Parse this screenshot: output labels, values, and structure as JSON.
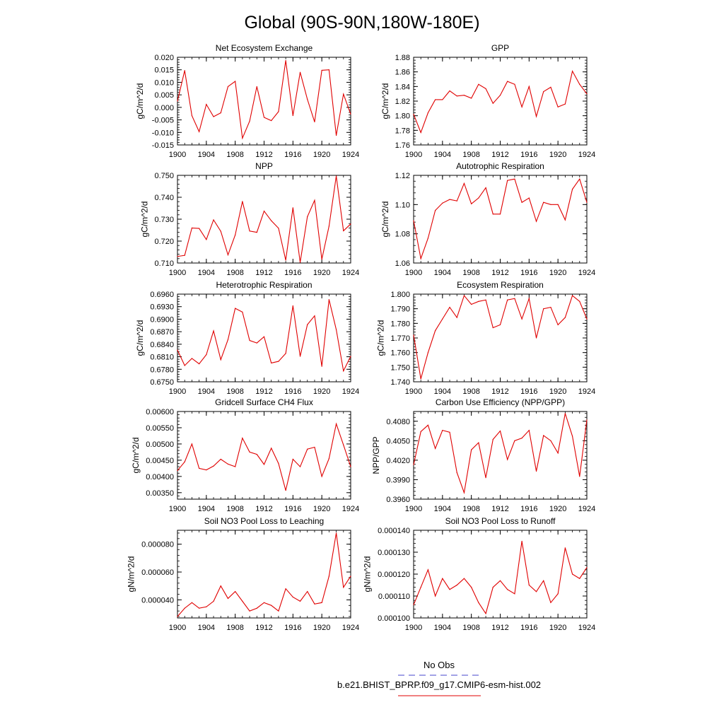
{
  "figure": {
    "title": "Global (90S-90N,180W-180E)",
    "legend": {
      "obs_label": "No Obs",
      "obs_color": "#4444cc",
      "model_label": "b.e21.BHIST_BPRP.f09_g17.CMIP6-esm-hist.002",
      "model_color": "#e00000"
    }
  },
  "chart_data": [
    {
      "type": "line",
      "title": "Net Ecosystem Exchange",
      "ylabel": "gC/m^2/d",
      "xlim": [
        1900,
        1924
      ],
      "xticks": [
        "1900",
        "1904",
        "1908",
        "1912",
        "1916",
        "1920",
        "1924"
      ],
      "ylim": [
        -0.015,
        0.02
      ],
      "yticks": [
        "-0.015",
        "-0.010",
        "-0.005",
        "0.000",
        "0.005",
        "0.010",
        "0.015",
        "0.020"
      ],
      "series": [
        {
          "name": "b.e21.BHIST_BPRP.f09_g17.CMIP6-esm-hist.002",
          "x": [
            1900,
            1901,
            1902,
            1903,
            1904,
            1905,
            1906,
            1907,
            1908,
            1909,
            1910,
            1911,
            1912,
            1913,
            1914,
            1915,
            1916,
            1917,
            1918,
            1919,
            1920,
            1921,
            1922,
            1923,
            1924
          ],
          "values": [
            0.0025,
            0.0147,
            -0.0033,
            -0.0097,
            0.0012,
            -0.0037,
            -0.0022,
            0.0083,
            0.0104,
            -0.0123,
            -0.0055,
            0.0083,
            -0.004,
            -0.0053,
            -0.0017,
            0.0187,
            -0.0033,
            0.014,
            0.0032,
            -0.0058,
            0.0148,
            0.015,
            -0.0112,
            0.0053,
            -0.0027
          ]
        }
      ]
    },
    {
      "type": "line",
      "title": "GPP",
      "ylabel": "gC/m^2/d",
      "xlim": [
        1900,
        1924
      ],
      "xticks": [
        "1900",
        "1904",
        "1908",
        "1912",
        "1916",
        "1920",
        "1924"
      ],
      "ylim": [
        1.76,
        1.88
      ],
      "yticks": [
        "1.76",
        "1.78",
        "1.80",
        "1.82",
        "1.84",
        "1.86",
        "1.88"
      ],
      "series": [
        {
          "name": "b.e21.BHIST_BPRP.f09_g17.CMIP6-esm-hist.002",
          "x": [
            1900,
            1901,
            1902,
            1903,
            1904,
            1905,
            1906,
            1907,
            1908,
            1909,
            1910,
            1911,
            1912,
            1913,
            1914,
            1915,
            1916,
            1917,
            1918,
            1919,
            1920,
            1921,
            1922,
            1923,
            1924
          ],
          "values": [
            1.802,
            1.777,
            1.804,
            1.822,
            1.822,
            1.834,
            1.827,
            1.828,
            1.824,
            1.843,
            1.837,
            1.817,
            1.828,
            1.847,
            1.843,
            1.812,
            1.84,
            1.799,
            1.833,
            1.839,
            1.812,
            1.816,
            1.861,
            1.843,
            1.83
          ]
        }
      ]
    },
    {
      "type": "line",
      "title": "NPP",
      "ylabel": "gC/m^2/d",
      "xlim": [
        1900,
        1924
      ],
      "xticks": [
        "1900",
        "1904",
        "1908",
        "1912",
        "1916",
        "1920",
        "1924"
      ],
      "ylim": [
        0.71,
        0.75
      ],
      "yticks": [
        "0.710",
        "0.720",
        "0.730",
        "0.740",
        "0.750"
      ],
      "series": [
        {
          "name": "b.e21.BHIST_BPRP.f09_g17.CMIP6-esm-hist.002",
          "x": [
            1900,
            1901,
            1902,
            1903,
            1904,
            1905,
            1906,
            1907,
            1908,
            1909,
            1910,
            1911,
            1912,
            1913,
            1914,
            1915,
            1916,
            1917,
            1918,
            1919,
            1920,
            1921,
            1922,
            1923,
            1924
          ],
          "values": [
            0.713,
            0.7135,
            0.726,
            0.7258,
            0.7207,
            0.7297,
            0.7245,
            0.7137,
            0.7228,
            0.7381,
            0.7246,
            0.724,
            0.7337,
            0.7293,
            0.7259,
            0.7113,
            0.7352,
            0.7103,
            0.7311,
            0.7386,
            0.7117,
            0.7268,
            0.7497,
            0.7247,
            0.7278
          ]
        }
      ]
    },
    {
      "type": "line",
      "title": "Autotrophic Respiration",
      "ylabel": "gC/m^2/d",
      "xlim": [
        1900,
        1924
      ],
      "xticks": [
        "1900",
        "1904",
        "1908",
        "1912",
        "1916",
        "1920",
        "1924"
      ],
      "ylim": [
        1.06,
        1.12
      ],
      "yticks": [
        "1.06",
        "1.08",
        "1.10",
        "1.12"
      ],
      "series": [
        {
          "name": "b.e21.BHIST_BPRP.f09_g17.CMIP6-esm-hist.002",
          "x": [
            1900,
            1901,
            1902,
            1903,
            1904,
            1905,
            1906,
            1907,
            1908,
            1909,
            1910,
            1911,
            1912,
            1913,
            1914,
            1915,
            1916,
            1917,
            1918,
            1919,
            1920,
            1921,
            1922,
            1923,
            1924
          ],
          "values": [
            1.089,
            1.063,
            1.077,
            1.096,
            1.101,
            1.1035,
            1.1025,
            1.1145,
            1.1005,
            1.1045,
            1.1115,
            1.0935,
            1.0935,
            1.1165,
            1.1175,
            1.1015,
            1.1045,
            1.0885,
            1.1015,
            1.1,
            1.1,
            1.0895,
            1.1105,
            1.1175,
            1.1015
          ]
        }
      ]
    },
    {
      "type": "line",
      "title": "Heterotrophic Respiration",
      "ylabel": "gC/m^2/d",
      "xlim": [
        1900,
        1924
      ],
      "xticks": [
        "1900",
        "1904",
        "1908",
        "1912",
        "1916",
        "1920",
        "1924"
      ],
      "ylim": [
        0.675,
        0.696
      ],
      "yticks": [
        "0.6750",
        "0.6780",
        "0.6810",
        "0.6840",
        "0.6870",
        "0.6900",
        "0.6930",
        "0.6960"
      ],
      "series": [
        {
          "name": "b.e21.BHIST_BPRP.f09_g17.CMIP6-esm-hist.002",
          "x": [
            1900,
            1901,
            1902,
            1903,
            1904,
            1905,
            1906,
            1907,
            1908,
            1909,
            1910,
            1911,
            1912,
            1913,
            1914,
            1915,
            1916,
            1917,
            1918,
            1919,
            1920,
            1921,
            1922,
            1923,
            1924
          ],
          "values": [
            0.6826,
            0.6789,
            0.6806,
            0.6793,
            0.6815,
            0.6872,
            0.6803,
            0.6851,
            0.6926,
            0.6917,
            0.6849,
            0.6843,
            0.6858,
            0.6795,
            0.6799,
            0.6818,
            0.6932,
            0.6811,
            0.6887,
            0.6908,
            0.6787,
            0.6947,
            0.6875,
            0.6776,
            0.6811
          ]
        }
      ]
    },
    {
      "type": "line",
      "title": "Ecosystem Respiration",
      "ylabel": "gC/m^2/d",
      "xlim": [
        1900,
        1924
      ],
      "xticks": [
        "1900",
        "1904",
        "1908",
        "1912",
        "1916",
        "1920",
        "1924"
      ],
      "ylim": [
        1.74,
        1.8
      ],
      "yticks": [
        "1.740",
        "1.750",
        "1.760",
        "1.770",
        "1.780",
        "1.790",
        "1.800"
      ],
      "series": [
        {
          "name": "b.e21.BHIST_BPRP.f09_g17.CMIP6-esm-hist.002",
          "x": [
            1900,
            1901,
            1902,
            1903,
            1904,
            1905,
            1906,
            1907,
            1908,
            1909,
            1910,
            1911,
            1912,
            1913,
            1914,
            1915,
            1916,
            1917,
            1918,
            1919,
            1920,
            1921,
            1922,
            1923,
            1924
          ],
          "values": [
            1.772,
            1.742,
            1.76,
            1.775,
            1.783,
            1.791,
            1.784,
            1.799,
            1.793,
            1.795,
            1.796,
            1.777,
            1.779,
            1.796,
            1.797,
            1.783,
            1.797,
            1.77,
            1.79,
            1.791,
            1.779,
            1.784,
            1.799,
            1.795,
            1.783
          ]
        }
      ]
    },
    {
      "type": "line",
      "title": "Gridcell Surface CH4 Flux",
      "ylabel": "gC/m^2/d",
      "xlim": [
        1900,
        1924
      ],
      "xticks": [
        "1900",
        "1904",
        "1908",
        "1912",
        "1916",
        "1920",
        "1924"
      ],
      "ylim": [
        0.0033,
        0.006
      ],
      "yticks": [
        "0.00350",
        "0.00400",
        "0.00450",
        "0.00500",
        "0.00550",
        "0.00600"
      ],
      "series": [
        {
          "name": "b.e21.BHIST_BPRP.f09_g17.CMIP6-esm-hist.002",
          "x": [
            1900,
            1901,
            1902,
            1903,
            1904,
            1905,
            1906,
            1907,
            1908,
            1909,
            1910,
            1911,
            1912,
            1913,
            1914,
            1915,
            1916,
            1917,
            1918,
            1919,
            1920,
            1921,
            1922,
            1923,
            1924
          ],
          "values": [
            0.00418,
            0.00445,
            0.005,
            0.00425,
            0.0042,
            0.00432,
            0.00453,
            0.00438,
            0.0043,
            0.00518,
            0.00475,
            0.00468,
            0.00437,
            0.00487,
            0.0044,
            0.00357,
            0.00453,
            0.0043,
            0.00484,
            0.0049,
            0.004,
            0.00455,
            0.00562,
            0.00497,
            0.0043
          ]
        }
      ]
    },
    {
      "type": "line",
      "title": "Carbon Use Efficiency (NPP/GPP)",
      "ylabel": "NPP/GPP",
      "xlim": [
        1900,
        1924
      ],
      "xticks": [
        "1900",
        "1904",
        "1908",
        "1912",
        "1916",
        "1920",
        "1924"
      ],
      "ylim": [
        0.396,
        0.4095
      ],
      "yticks": [
        "0.3960",
        "0.3990",
        "0.4020",
        "0.4050",
        "0.4080"
      ],
      "series": [
        {
          "name": "b.e21.BHIST_BPRP.f09_g17.CMIP6-esm-hist.002",
          "x": [
            1900,
            1901,
            1902,
            1903,
            1904,
            1905,
            1906,
            1907,
            1908,
            1909,
            1910,
            1911,
            1912,
            1913,
            1914,
            1915,
            1916,
            1917,
            1918,
            1919,
            1920,
            1921,
            1922,
            1923,
            1924
          ],
          "values": [
            0.4013,
            0.4064,
            0.4074,
            0.4038,
            0.4066,
            0.4063,
            0.4001,
            0.397,
            0.4036,
            0.4047,
            0.3993,
            0.4052,
            0.4065,
            0.4021,
            0.405,
            0.4054,
            0.4066,
            0.4003,
            0.4058,
            0.405,
            0.4031,
            0.4092,
            0.4057,
            0.3995,
            0.4082
          ]
        }
      ]
    },
    {
      "type": "line",
      "title": "Soil NO3 Pool Loss to Leaching",
      "ylabel": "gN/m^2/d",
      "xlim": [
        1900,
        1924
      ],
      "xticks": [
        "1900",
        "1904",
        "1908",
        "1912",
        "1916",
        "1920",
        "1924"
      ],
      "ylim": [
        2.7e-05,
        9e-05
      ],
      "yticks": [
        "0.000040",
        "0.000060",
        "0.000080"
      ],
      "series": [
        {
          "name": "b.e21.BHIST_BPRP.f09_g17.CMIP6-esm-hist.002",
          "x": [
            1900,
            1901,
            1902,
            1903,
            1904,
            1905,
            1906,
            1907,
            1908,
            1909,
            1910,
            1911,
            1912,
            1913,
            1914,
            1915,
            1916,
            1917,
            1918,
            1919,
            1920,
            1921,
            1922,
            1923,
            1924
          ],
          "values": [
            2.8e-05,
            3.4e-05,
            3.8e-05,
            3.4e-05,
            3.5e-05,
            3.9e-05,
            5e-05,
            4.1e-05,
            4.6e-05,
            3.9e-05,
            3.2e-05,
            3.4e-05,
            3.8e-05,
            3.6e-05,
            3.2e-05,
            4.8e-05,
            4.2e-05,
            3.9e-05,
            4.6e-05,
            3.7e-05,
            3.8e-05,
            5.7e-05,
            8.8e-05,
            4.9e-05,
            5.7e-05
          ]
        }
      ]
    },
    {
      "type": "line",
      "title": "Soil NO3 Pool Loss to Runoff",
      "ylabel": "gN/m^2/d",
      "xlim": [
        1900,
        1924
      ],
      "xticks": [
        "1900",
        "1904",
        "1908",
        "1912",
        "1916",
        "1920",
        "1924"
      ],
      "ylim": [
        0.0001,
        0.00014
      ],
      "yticks": [
        "0.000100",
        "0.000110",
        "0.000120",
        "0.000130",
        "0.000140"
      ],
      "series": [
        {
          "name": "b.e21.BHIST_BPRP.f09_g17.CMIP6-esm-hist.002",
          "x": [
            1900,
            1901,
            1902,
            1903,
            1904,
            1905,
            1906,
            1907,
            1908,
            1909,
            1910,
            1911,
            1912,
            1913,
            1914,
            1915,
            1916,
            1917,
            1918,
            1919,
            1920,
            1921,
            1922,
            1923,
            1924
          ],
          "values": [
            0.000106,
            0.000114,
            0.000122,
            0.00011,
            0.000118,
            0.000113,
            0.000115,
            0.000118,
            0.000114,
            0.000107,
            0.000102,
            0.000114,
            0.000117,
            0.000113,
            0.000111,
            0.000135,
            0.000115,
            0.000112,
            0.000117,
            0.000107,
            0.000111,
            0.000132,
            0.00012,
            0.000118,
            0.000123
          ]
        }
      ]
    }
  ]
}
